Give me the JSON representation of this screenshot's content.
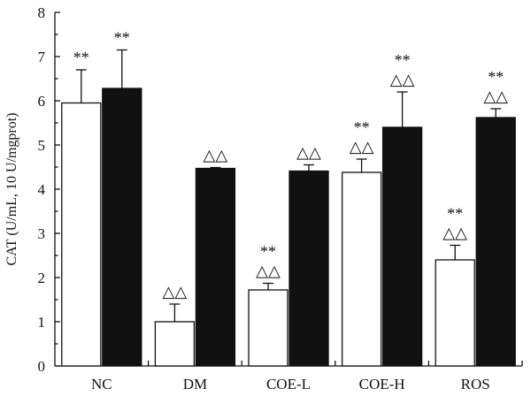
{
  "chart_data": {
    "type": "bar",
    "ylabel": "CAT (U/mL, 10 U/mgprot)",
    "xlabel": "",
    "ylim": [
      0,
      8
    ],
    "yticks": [
      "0",
      "1",
      "2",
      "3",
      "4",
      "5",
      "6",
      "7",
      "8"
    ],
    "categories": [
      "NC",
      "DM",
      "COE-L",
      "COE-H",
      "ROS"
    ],
    "series": [
      {
        "color": "#ffffff",
        "values": [
          5.95,
          1.0,
          1.72,
          4.38,
          2.4
        ],
        "errors": [
          0.75,
          0.4,
          0.15,
          0.3,
          0.33
        ],
        "annotations": [
          [
            "**"
          ],
          [
            "△△"
          ],
          [
            "**",
            "△△"
          ],
          [
            "**",
            "△△"
          ],
          [
            "**",
            "△△"
          ]
        ]
      },
      {
        "color": "#111111",
        "values": [
          6.28,
          4.47,
          4.41,
          5.4,
          5.62
        ],
        "errors": [
          0.87,
          0.02,
          0.14,
          0.8,
          0.2
        ],
        "annotations": [
          [
            "**"
          ],
          [
            "△△"
          ],
          [
            "△△"
          ],
          [
            "**",
            "△△"
          ],
          [
            "**",
            "△△"
          ]
        ]
      }
    ]
  }
}
